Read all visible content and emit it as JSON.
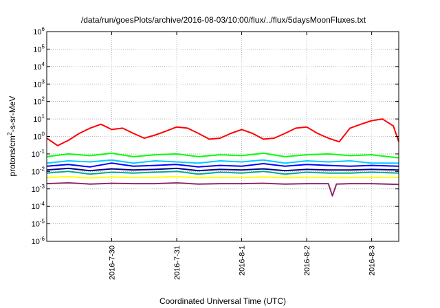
{
  "chart_data": {
    "type": "line",
    "title": "/data/run/goesPlots/archive/2016-08-03/10:00/flux/../flux/5daysMoonFluxes.txt",
    "xlabel": "Coordinated Universal Time (UTC)",
    "ylabel": {
      "pre": "protons/cm",
      "sup": "2",
      "post": "-s-sr-MeV"
    },
    "scale_y": "log",
    "grid": true,
    "xlim": [
      "2016-07-29T00:00",
      "2016-08-03T10:00"
    ],
    "ylim": [
      1e-06,
      1000000.0
    ],
    "y_ticks": [
      {
        "value": 1e-06,
        "base": "10",
        "exp": "-6"
      },
      {
        "value": 1e-05,
        "base": "10",
        "exp": "-5"
      },
      {
        "value": 0.0001,
        "base": "10",
        "exp": "-4"
      },
      {
        "value": 0.001,
        "base": "10",
        "exp": "-3"
      },
      {
        "value": 0.01,
        "base": "10",
        "exp": "-2"
      },
      {
        "value": 0.1,
        "base": "10",
        "exp": "-1"
      },
      {
        "value": 1.0,
        "base": "10",
        "exp": "0"
      },
      {
        "value": 10.0,
        "base": "10",
        "exp": "1"
      },
      {
        "value": 100.0,
        "base": "10",
        "exp": "2"
      },
      {
        "value": 1000.0,
        "base": "10",
        "exp": "3"
      },
      {
        "value": 10000.0,
        "base": "10",
        "exp": "4"
      },
      {
        "value": 100000.0,
        "base": "10",
        "exp": "5"
      },
      {
        "value": 1000000.0,
        "base": "10",
        "exp": "6"
      }
    ],
    "x_ticks": [
      {
        "value": "2016-07-30T00:00",
        "label": "2016-7-30"
      },
      {
        "value": "2016-07-31T00:00",
        "label": "2016-7-31"
      },
      {
        "value": "2016-08-01T00:00",
        "label": "2016-8-1"
      },
      {
        "value": "2016-08-02T00:00",
        "label": "2016-8-2"
      },
      {
        "value": "2016-08-03T00:00",
        "label": "2016-8-3"
      }
    ],
    "series": [
      {
        "color": "#ff0000",
        "x": [
          "2016-07-29T00:00",
          "2016-07-29T04:00",
          "2016-07-29T08:00",
          "2016-07-29T12:00",
          "2016-07-29T16:00",
          "2016-07-29T20:00",
          "2016-07-30T00:00",
          "2016-07-30T04:00",
          "2016-07-30T08:00",
          "2016-07-30T12:00",
          "2016-07-30T16:00",
          "2016-07-30T20:00",
          "2016-07-31T00:00",
          "2016-07-31T04:00",
          "2016-07-31T08:00",
          "2016-07-31T12:00",
          "2016-07-31T16:00",
          "2016-07-31T20:00",
          "2016-08-01T00:00",
          "2016-08-01T04:00",
          "2016-08-01T08:00",
          "2016-08-01T12:00",
          "2016-08-01T16:00",
          "2016-08-01T20:00",
          "2016-08-02T00:00",
          "2016-08-02T04:00",
          "2016-08-02T08:00",
          "2016-08-02T12:00",
          "2016-08-02T16:00",
          "2016-08-02T20:00",
          "2016-08-03T00:00",
          "2016-08-03T04:00",
          "2016-08-03T08:00",
          "2016-08-03T10:00"
        ],
        "values": [
          0.8,
          0.3,
          0.6,
          1.5,
          3,
          5,
          2.5,
          3,
          1.5,
          0.8,
          1.2,
          2,
          3.5,
          3,
          1.5,
          0.7,
          0.8,
          1.5,
          2.5,
          1.5,
          0.7,
          0.8,
          1.5,
          3,
          3.5,
          1.5,
          0.8,
          0.5,
          3,
          5,
          8,
          10,
          4,
          0.5
        ]
      },
      {
        "color": "#00ff00",
        "x": [
          "2016-07-29T00:00",
          "2016-07-29T08:00",
          "2016-07-29T16:00",
          "2016-07-30T00:00",
          "2016-07-30T08:00",
          "2016-07-30T16:00",
          "2016-07-31T00:00",
          "2016-07-31T08:00",
          "2016-07-31T16:00",
          "2016-08-01T00:00",
          "2016-08-01T08:00",
          "2016-08-01T16:00",
          "2016-08-02T00:00",
          "2016-08-02T08:00",
          "2016-08-02T16:00",
          "2016-08-03T00:00",
          "2016-08-03T10:00"
        ],
        "values": [
          0.07,
          0.1,
          0.08,
          0.11,
          0.07,
          0.09,
          0.1,
          0.07,
          0.09,
          0.08,
          0.11,
          0.07,
          0.09,
          0.1,
          0.08,
          0.09,
          0.06
        ]
      },
      {
        "color": "#00ccff",
        "x": [
          "2016-07-29T00:00",
          "2016-07-29T08:00",
          "2016-07-29T16:00",
          "2016-07-30T00:00",
          "2016-07-30T08:00",
          "2016-07-30T16:00",
          "2016-07-31T00:00",
          "2016-07-31T08:00",
          "2016-07-31T16:00",
          "2016-08-01T00:00",
          "2016-08-01T08:00",
          "2016-08-01T16:00",
          "2016-08-02T00:00",
          "2016-08-02T08:00",
          "2016-08-02T16:00",
          "2016-08-03T00:00",
          "2016-08-03T10:00"
        ],
        "values": [
          0.03,
          0.04,
          0.035,
          0.045,
          0.03,
          0.04,
          0.035,
          0.03,
          0.04,
          0.035,
          0.045,
          0.03,
          0.04,
          0.035,
          0.04,
          0.03,
          0.03
        ]
      },
      {
        "color": "#0000ff",
        "x": [
          "2016-07-29T00:00",
          "2016-07-29T08:00",
          "2016-07-29T16:00",
          "2016-07-30T00:00",
          "2016-07-30T08:00",
          "2016-07-30T16:00",
          "2016-07-31T00:00",
          "2016-07-31T08:00",
          "2016-07-31T16:00",
          "2016-08-01T00:00",
          "2016-08-01T08:00",
          "2016-08-01T16:00",
          "2016-08-02T00:00",
          "2016-08-02T08:00",
          "2016-08-02T16:00",
          "2016-08-03T00:00",
          "2016-08-03T10:00"
        ],
        "values": [
          0.02,
          0.025,
          0.018,
          0.03,
          0.02,
          0.022,
          0.025,
          0.018,
          0.022,
          0.02,
          0.028,
          0.02,
          0.025,
          0.022,
          0.02,
          0.022,
          0.02
        ]
      },
      {
        "color": "#00008b",
        "x": [
          "2016-07-29T00:00",
          "2016-07-29T08:00",
          "2016-07-29T16:00",
          "2016-07-30T00:00",
          "2016-07-30T08:00",
          "2016-07-30T16:00",
          "2016-07-31T00:00",
          "2016-07-31T08:00",
          "2016-07-31T16:00",
          "2016-08-01T00:00",
          "2016-08-01T08:00",
          "2016-08-01T16:00",
          "2016-08-02T00:00",
          "2016-08-02T08:00",
          "2016-08-02T16:00",
          "2016-08-03T00:00",
          "2016-08-03T10:00"
        ],
        "values": [
          0.012,
          0.015,
          0.011,
          0.014,
          0.012,
          0.013,
          0.015,
          0.011,
          0.013,
          0.012,
          0.014,
          0.011,
          0.013,
          0.012,
          0.012,
          0.013,
          0.012
        ]
      },
      {
        "color": "#00aa88",
        "x": [
          "2016-07-29T00:00",
          "2016-07-29T08:00",
          "2016-07-29T16:00",
          "2016-07-30T00:00",
          "2016-07-30T08:00",
          "2016-07-30T16:00",
          "2016-07-31T00:00",
          "2016-07-31T08:00",
          "2016-07-31T16:00",
          "2016-08-01T00:00",
          "2016-08-01T08:00",
          "2016-08-01T16:00",
          "2016-08-02T00:00",
          "2016-08-02T08:00",
          "2016-08-02T16:00",
          "2016-08-03T00:00",
          "2016-08-03T10:00"
        ],
        "values": [
          0.008,
          0.01,
          0.007,
          0.009,
          0.008,
          0.009,
          0.01,
          0.007,
          0.009,
          0.008,
          0.01,
          0.007,
          0.009,
          0.008,
          0.008,
          0.009,
          0.008
        ]
      },
      {
        "color": "#ffff00",
        "x": [
          "2016-07-29T00:00",
          "2016-07-29T08:00",
          "2016-07-29T16:00",
          "2016-07-30T00:00",
          "2016-07-30T08:00",
          "2016-07-30T16:00",
          "2016-07-31T00:00",
          "2016-07-31T08:00",
          "2016-07-31T16:00",
          "2016-08-01T00:00",
          "2016-08-01T08:00",
          "2016-08-01T16:00",
          "2016-08-02T00:00",
          "2016-08-02T08:00",
          "2016-08-02T16:00",
          "2016-08-03T00:00",
          "2016-08-03T10:00"
        ],
        "values": [
          0.0045,
          0.005,
          0.0042,
          0.0048,
          0.0045,
          0.0046,
          0.005,
          0.0044,
          0.0046,
          0.0045,
          0.0048,
          0.0044,
          0.0046,
          0.0045,
          0.0044,
          0.0046,
          0.0045
        ]
      },
      {
        "color": "#8b2a6b",
        "x": [
          "2016-07-29T00:00",
          "2016-07-29T08:00",
          "2016-07-29T16:00",
          "2016-07-30T00:00",
          "2016-07-30T08:00",
          "2016-07-30T16:00",
          "2016-07-31T00:00",
          "2016-07-31T08:00",
          "2016-07-31T16:00",
          "2016-08-01T00:00",
          "2016-08-01T08:00",
          "2016-08-01T16:00",
          "2016-08-02T00:00",
          "2016-08-02T08:00",
          "2016-08-02T09:30",
          "2016-08-02T11:00",
          "2016-08-02T16:00",
          "2016-08-03T00:00",
          "2016-08-03T10:00"
        ],
        "values": [
          0.002,
          0.0022,
          0.0019,
          0.0021,
          0.002,
          0.002,
          0.0022,
          0.0019,
          0.002,
          0.002,
          0.0021,
          0.0019,
          0.002,
          0.002,
          0.0004,
          0.0019,
          0.002,
          0.002,
          0.0018
        ]
      }
    ]
  }
}
